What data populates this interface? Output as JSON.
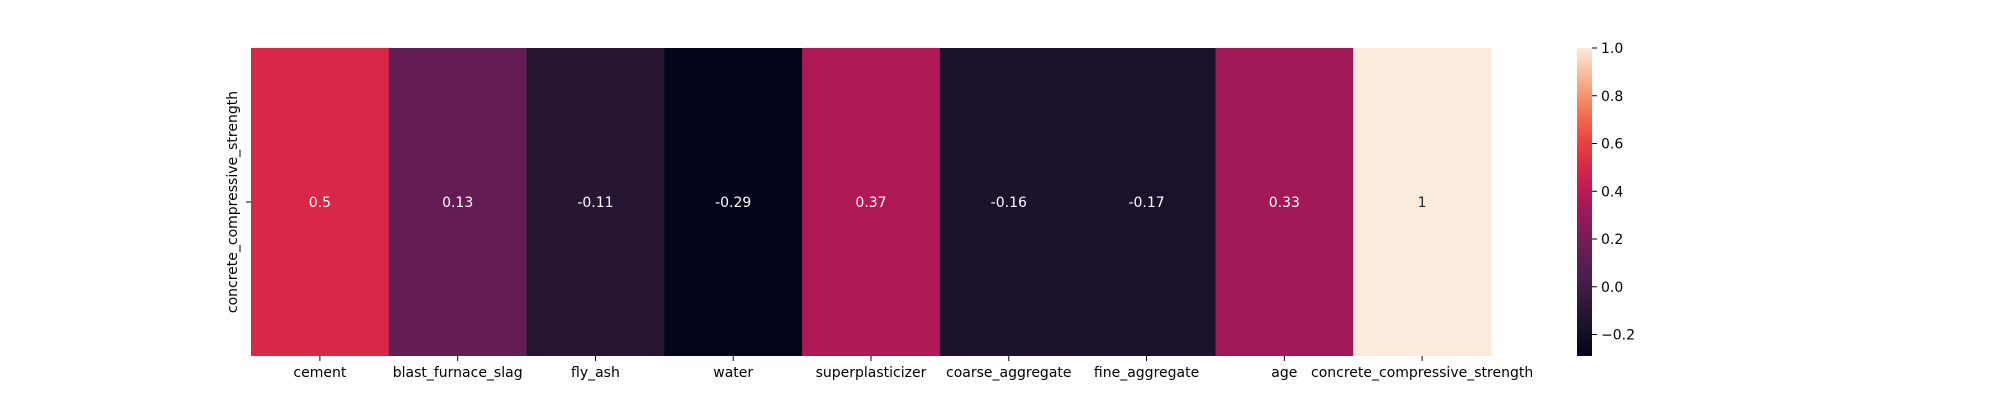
{
  "chart_data": {
    "type": "heatmap",
    "title": "",
    "rows": [
      "concrete_compressive_strength"
    ],
    "columns": [
      "cement",
      "blast_furnace_slag",
      "fly_ash",
      "water",
      "superplasticizer",
      "coarse_aggregate",
      "fine_aggregate",
      "age",
      "concrete_compressive_strength"
    ],
    "values": [
      [
        0.5,
        0.13,
        -0.11,
        -0.29,
        0.37,
        -0.16,
        -0.17,
        0.33,
        1
      ]
    ],
    "value_labels": [
      "0.5",
      "0.13",
      "-0.11",
      "-0.29",
      "0.37",
      "-0.16",
      "-0.17",
      "0.33",
      "1"
    ],
    "colorbar": {
      "vmin": -0.29,
      "vmax": 1.0,
      "ticks": [
        -0.2,
        0.0,
        0.2,
        0.4,
        0.6,
        0.8,
        1.0
      ],
      "tick_labels": [
        "−0.2",
        "0.0",
        "0.2",
        "0.4",
        "0.6",
        "0.8",
        "1.0"
      ],
      "colormap": "rocket",
      "placement": "right"
    },
    "grid": false
  }
}
